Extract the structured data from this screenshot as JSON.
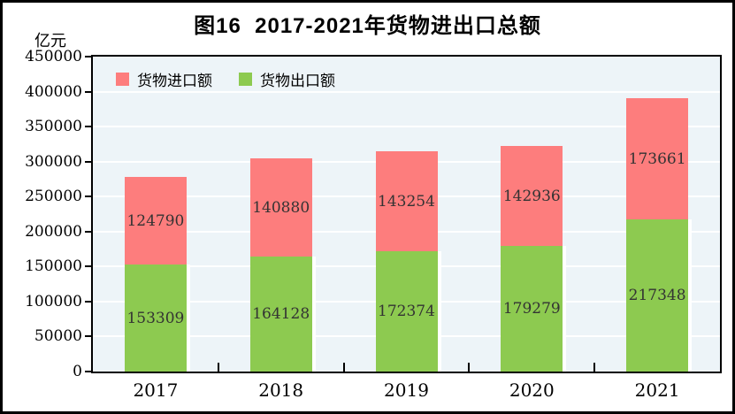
{
  "title": "图16  2017-2021年货物进出口总额",
  "unit_label": "亿元",
  "chart_data": {
    "type": "bar",
    "stacked": true,
    "title": "图16  2017-2021年货物进出口总额",
    "ylabel": "亿元",
    "xlabel": "",
    "categories": [
      "2017",
      "2018",
      "2019",
      "2020",
      "2021"
    ],
    "series": [
      {
        "name": "货物出口额",
        "role": "export",
        "color": "#8DCA50",
        "values": [
          153309,
          164128,
          172374,
          179279,
          217348
        ]
      },
      {
        "name": "货物进口额",
        "role": "import",
        "color": "#FD7D7D",
        "values": [
          124790,
          140880,
          143254,
          142936,
          173661
        ]
      }
    ],
    "legend": [
      "货物进口额",
      "货物出口额"
    ],
    "legend_position": "top-left-inside",
    "ylim": [
      0,
      450000
    ],
    "ytick_step": 50000,
    "yticks": [
      0,
      50000,
      100000,
      150000,
      200000,
      250000,
      300000,
      350000,
      400000,
      450000
    ],
    "grid": "horizontal",
    "grid_color": "#FFFFFF",
    "plot_bg": "#EDF4F8",
    "axis_color": "#000000",
    "bar_label_color": "#333333"
  }
}
